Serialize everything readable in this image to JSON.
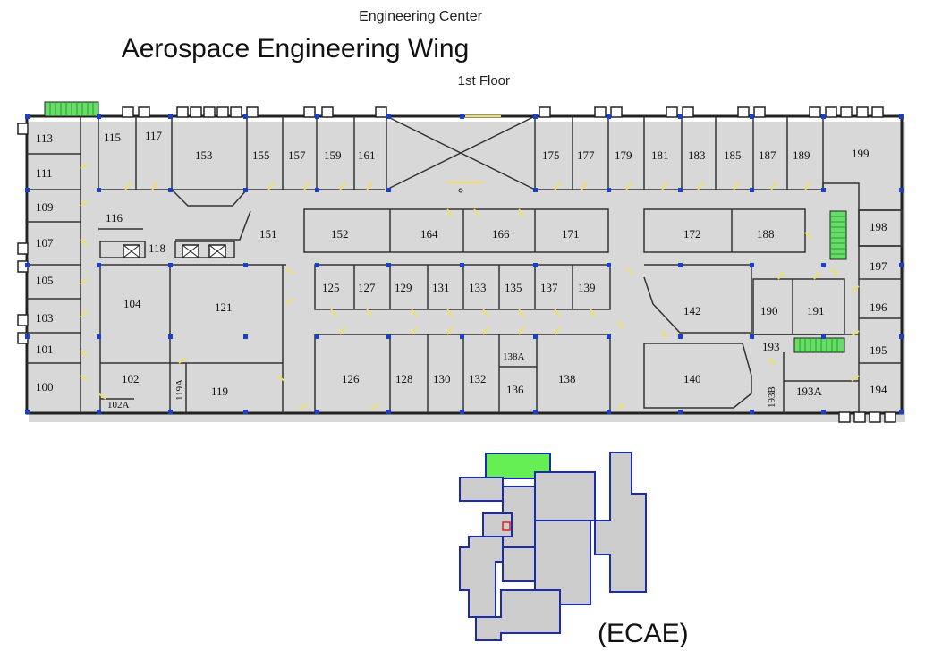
{
  "header": {
    "building": "Engineering Center",
    "wing": "Aerospace Engineering Wing",
    "floor": "1st Floor"
  },
  "key_map": {
    "label": "(ECAE)",
    "highlight_color": "#66ee55",
    "outline_color": "#1a2bb0",
    "fill_color": "#cccccc",
    "marker_color": "#e02020"
  },
  "colors": {
    "wall": "#222222",
    "door": "#f0e060",
    "column": "#1a3fcc",
    "stair": "#66dd66"
  },
  "rooms": [
    {
      "id": "113",
      "label": "113"
    },
    {
      "id": "111",
      "label": "111"
    },
    {
      "id": "109",
      "label": "109"
    },
    {
      "id": "107",
      "label": "107"
    },
    {
      "id": "105",
      "label": "105"
    },
    {
      "id": "103",
      "label": "103"
    },
    {
      "id": "101",
      "label": "101"
    },
    {
      "id": "100",
      "label": "100"
    },
    {
      "id": "115",
      "label": "115"
    },
    {
      "id": "117",
      "label": "117"
    },
    {
      "id": "153",
      "label": "153"
    },
    {
      "id": "155",
      "label": "155"
    },
    {
      "id": "157",
      "label": "157"
    },
    {
      "id": "159",
      "label": "159"
    },
    {
      "id": "161",
      "label": "161"
    },
    {
      "id": "175",
      "label": "175"
    },
    {
      "id": "177",
      "label": "177"
    },
    {
      "id": "179",
      "label": "179"
    },
    {
      "id": "181",
      "label": "181"
    },
    {
      "id": "183",
      "label": "183"
    },
    {
      "id": "185",
      "label": "185"
    },
    {
      "id": "187",
      "label": "187"
    },
    {
      "id": "189",
      "label": "189"
    },
    {
      "id": "199",
      "label": "199"
    },
    {
      "id": "116",
      "label": "116"
    },
    {
      "id": "118",
      "label": "118"
    },
    {
      "id": "151",
      "label": "151"
    },
    {
      "id": "152",
      "label": "152"
    },
    {
      "id": "164",
      "label": "164"
    },
    {
      "id": "166",
      "label": "166"
    },
    {
      "id": "171",
      "label": "171"
    },
    {
      "id": "172",
      "label": "172"
    },
    {
      "id": "188",
      "label": "188"
    },
    {
      "id": "198",
      "label": "198"
    },
    {
      "id": "197",
      "label": "197"
    },
    {
      "id": "104",
      "label": "104"
    },
    {
      "id": "121",
      "label": "121"
    },
    {
      "id": "125",
      "label": "125"
    },
    {
      "id": "127",
      "label": "127"
    },
    {
      "id": "129",
      "label": "129"
    },
    {
      "id": "131",
      "label": "131"
    },
    {
      "id": "133",
      "label": "133"
    },
    {
      "id": "135",
      "label": "135"
    },
    {
      "id": "137",
      "label": "137"
    },
    {
      "id": "139",
      "label": "139"
    },
    {
      "id": "142",
      "label": "142"
    },
    {
      "id": "190",
      "label": "190"
    },
    {
      "id": "191",
      "label": "191"
    },
    {
      "id": "196",
      "label": "196"
    },
    {
      "id": "193",
      "label": "193"
    },
    {
      "id": "195",
      "label": "195"
    },
    {
      "id": "102",
      "label": "102"
    },
    {
      "id": "102A",
      "label": "102A"
    },
    {
      "id": "119A",
      "label": "119A"
    },
    {
      "id": "119",
      "label": "119"
    },
    {
      "id": "126",
      "label": "126"
    },
    {
      "id": "128",
      "label": "128"
    },
    {
      "id": "130",
      "label": "130"
    },
    {
      "id": "132",
      "label": "132"
    },
    {
      "id": "138A",
      "label": "138A"
    },
    {
      "id": "136",
      "label": "136"
    },
    {
      "id": "138",
      "label": "138"
    },
    {
      "id": "140",
      "label": "140"
    },
    {
      "id": "193B",
      "label": "193B"
    },
    {
      "id": "193A",
      "label": "193A"
    },
    {
      "id": "194",
      "label": "194"
    }
  ]
}
